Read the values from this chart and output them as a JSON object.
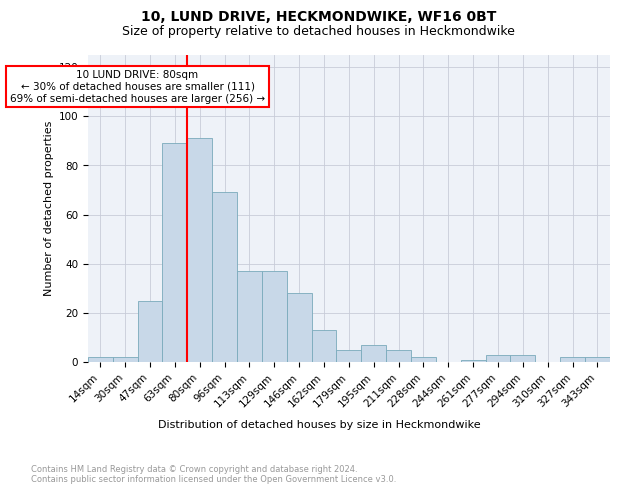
{
  "title1": "10, LUND DRIVE, HECKMONDWIKE, WF16 0BT",
  "title2": "Size of property relative to detached houses in Heckmondwike",
  "xlabel": "Distribution of detached houses by size in Heckmondwike",
  "ylabel": "Number of detached properties",
  "categories": [
    "14sqm",
    "30sqm",
    "47sqm",
    "63sqm",
    "80sqm",
    "96sqm",
    "113sqm",
    "129sqm",
    "146sqm",
    "162sqm",
    "179sqm",
    "195sqm",
    "211sqm",
    "228sqm",
    "244sqm",
    "261sqm",
    "277sqm",
    "294sqm",
    "310sqm",
    "327sqm",
    "343sqm"
  ],
  "values": [
    2,
    2,
    25,
    89,
    91,
    69,
    37,
    37,
    28,
    13,
    5,
    7,
    5,
    2,
    0,
    1,
    3,
    3,
    0,
    2,
    2
  ],
  "bar_color": "#c8d8e8",
  "bar_edge_color": "#7aaabb",
  "red_line_index": 4,
  "annotation_text": "10 LUND DRIVE: 80sqm\n← 30% of detached houses are smaller (111)\n69% of semi-detached houses are larger (256) →",
  "ylim": [
    0,
    125
  ],
  "yticks": [
    0,
    20,
    40,
    60,
    80,
    100,
    120
  ],
  "footer_text": "Contains HM Land Registry data © Crown copyright and database right 2024.\nContains public sector information licensed under the Open Government Licence v3.0.",
  "bg_color": "#eef2f8",
  "grid_color": "#c8ccd8",
  "title1_fontsize": 10,
  "title2_fontsize": 9,
  "ylabel_fontsize": 8,
  "xlabel_fontsize": 8,
  "tick_fontsize": 7.5,
  "footer_fontsize": 6,
  "ann_fontsize": 7.5
}
